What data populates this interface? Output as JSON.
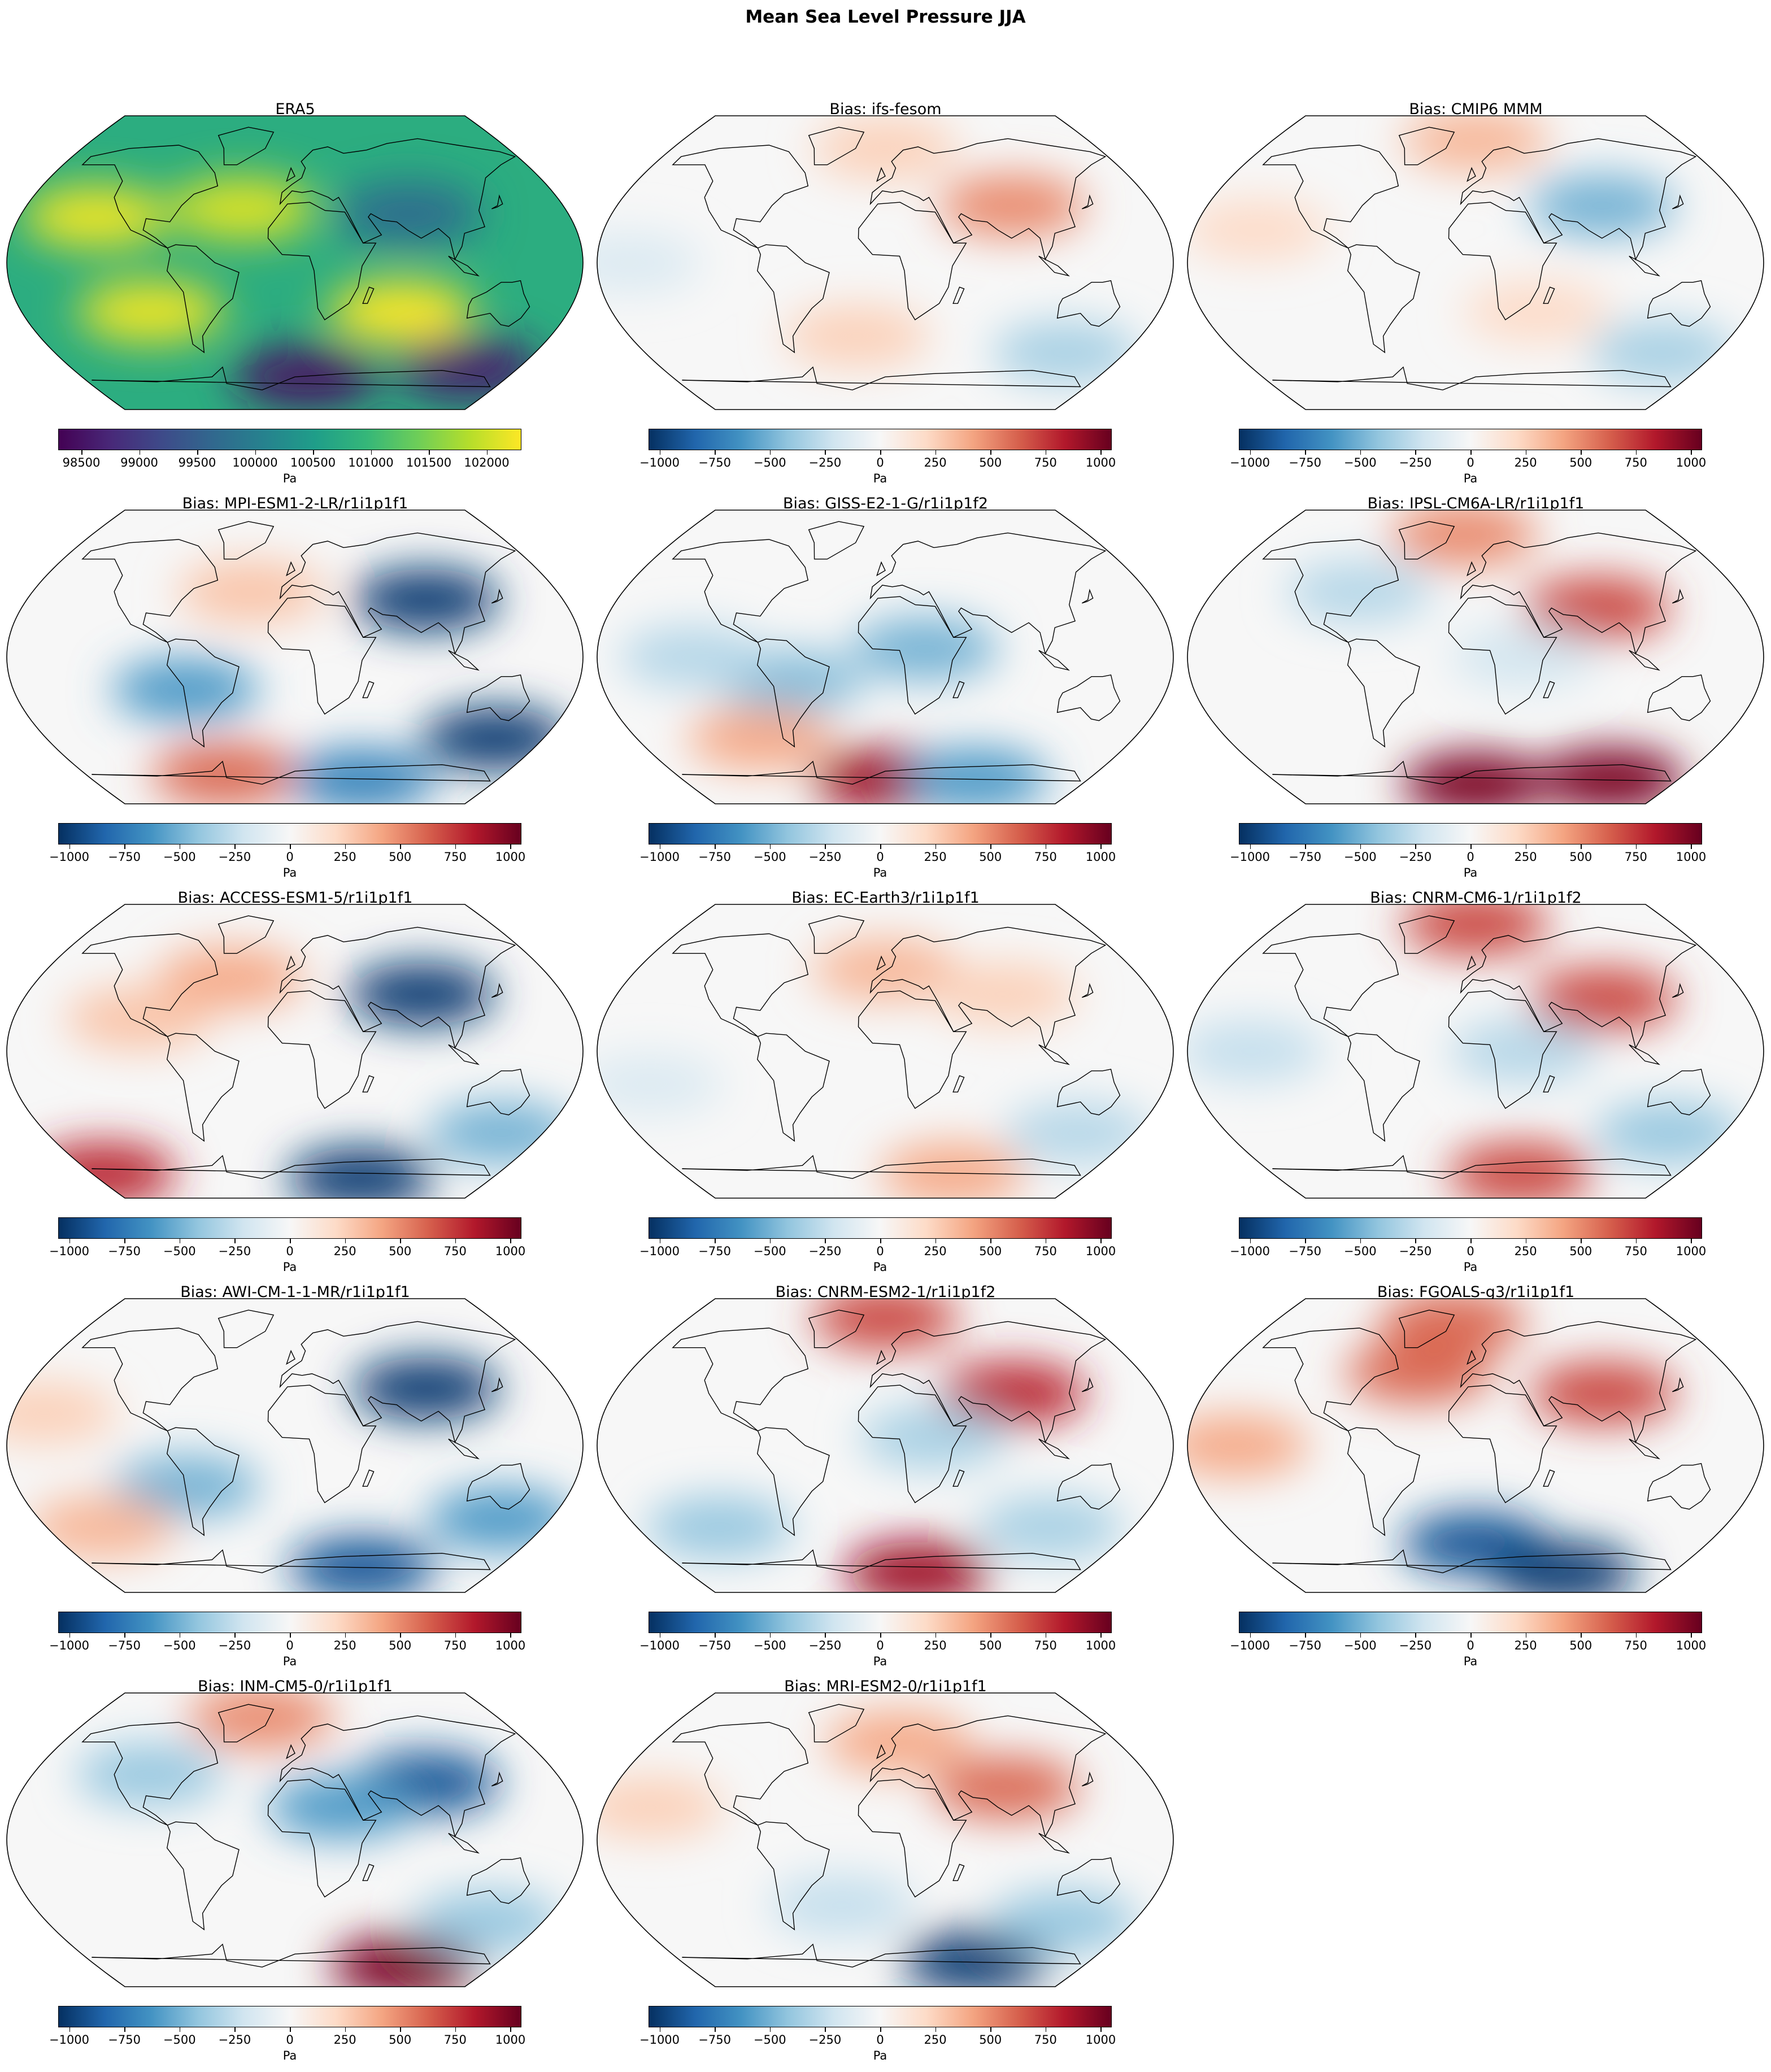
{
  "figure": {
    "title": "Mean Sea Level Pressure JJA"
  },
  "colors": {
    "viridis": [
      "#440154",
      "#482878",
      "#3e4a89",
      "#31688e",
      "#26828e",
      "#1f9e89",
      "#35b779",
      "#6ece58",
      "#b5de2b",
      "#fde725"
    ],
    "rdbu": [
      "#053061",
      "#2166ac",
      "#4393c3",
      "#92c5de",
      "#d1e5f0",
      "#f7f7f7",
      "#fddbc7",
      "#f4a582",
      "#d6604d",
      "#b2182b",
      "#67001f"
    ],
    "coastline": "#000000"
  },
  "colorbar_ticks": {
    "absolute": [
      "98500",
      "99000",
      "99500",
      "100000",
      "100500",
      "101000",
      "101500",
      "102000"
    ],
    "bias": [
      "−1000",
      "−750",
      "−500",
      "−250",
      "0",
      "250",
      "500",
      "750",
      "1000"
    ]
  },
  "colorbar_ranges": {
    "absolute": {
      "min": 98300,
      "max": 102300
    },
    "bias": {
      "min": -1050,
      "max": 1050
    }
  },
  "unit": "Pa",
  "panels": [
    {
      "title": "ERA5",
      "colormap": "viridis",
      "ticks": "absolute",
      "fields": [
        {
          "lon": -130,
          "lat": 28,
          "value": 102200
        },
        {
          "lon": -35,
          "lat": 33,
          "value": 102100
        },
        {
          "lon": -95,
          "lat": -30,
          "value": 102200
        },
        {
          "lon": 70,
          "lat": -30,
          "value": 102300
        },
        {
          "lon": 75,
          "lat": 30,
          "value": 99700
        },
        {
          "lon": 10,
          "lat": -70,
          "value": 98500
        },
        {
          "lon": 140,
          "lat": -65,
          "value": 98600
        }
      ]
    },
    {
      "title": "Bias: ifs-fesom",
      "colormap": "rdbu",
      "ticks": "bias",
      "fields": [
        {
          "lon": 85,
          "lat": 35,
          "value": 500
        },
        {
          "lon": 135,
          "lat": -55,
          "value": -350
        },
        {
          "lon": -20,
          "lat": -45,
          "value": 250
        },
        {
          "lon": 0,
          "lat": 70,
          "value": 250
        },
        {
          "lon": -160,
          "lat": 0,
          "value": -150
        }
      ]
    },
    {
      "title": "Bias: CMIP6 MMM",
      "colormap": "rdbu",
      "ticks": "bias",
      "fields": [
        {
          "lon": 85,
          "lat": 35,
          "value": -500
        },
        {
          "lon": 140,
          "lat": -55,
          "value": -350
        },
        {
          "lon": 0,
          "lat": 75,
          "value": 350
        },
        {
          "lon": -140,
          "lat": 20,
          "value": 200
        },
        {
          "lon": 40,
          "lat": -30,
          "value": 200
        }
      ]
    },
    {
      "title": "Bias: MPI-ESM1-2-LR/r1i1p1f1",
      "colormap": "rdbu",
      "ticks": "bias",
      "fields": [
        {
          "lon": 88,
          "lat": 35,
          "value": -1000
        },
        {
          "lon": 145,
          "lat": -50,
          "value": -1000
        },
        {
          "lon": -70,
          "lat": -20,
          "value": -600
        },
        {
          "lon": -60,
          "lat": -72,
          "value": 600
        },
        {
          "lon": 60,
          "lat": -75,
          "value": -700
        },
        {
          "lon": -30,
          "lat": 40,
          "value": 300
        }
      ]
    },
    {
      "title": "Bias: GISS-E2-1-G/r1i1p1f2",
      "colormap": "rdbu",
      "ticks": "bias",
      "fields": [
        {
          "lon": 25,
          "lat": 5,
          "value": -500
        },
        {
          "lon": -60,
          "lat": -15,
          "value": -450
        },
        {
          "lon": -120,
          "lat": 0,
          "value": -300
        },
        {
          "lon": 0,
          "lat": -75,
          "value": 900
        },
        {
          "lon": 80,
          "lat": -75,
          "value": -600
        },
        {
          "lon": -90,
          "lat": -50,
          "value": 400
        }
      ]
    },
    {
      "title": "Bias: IPSL-CM6A-LR/r1i1p1f1",
      "colormap": "rdbu",
      "ticks": "bias",
      "fields": [
        {
          "lon": 0,
          "lat": -78,
          "value": 1000
        },
        {
          "lon": 120,
          "lat": -75,
          "value": 1000
        },
        {
          "lon": 80,
          "lat": 30,
          "value": 700
        },
        {
          "lon": -10,
          "lat": 75,
          "value": 500
        },
        {
          "lon": -80,
          "lat": 40,
          "value": -300
        },
        {
          "lon": 30,
          "lat": 0,
          "value": -200
        }
      ]
    },
    {
      "title": "Bias: ACCESS-ESM1-5/r1i1p1f1",
      "colormap": "rdbu",
      "ticks": "bias",
      "fields": [
        {
          "lon": 85,
          "lat": 35,
          "value": -1000
        },
        {
          "lon": 60,
          "lat": -78,
          "value": -1000
        },
        {
          "lon": 150,
          "lat": -50,
          "value": -500
        },
        {
          "lon": -45,
          "lat": 45,
          "value": 400
        },
        {
          "lon": -170,
          "lat": -75,
          "value": 800
        },
        {
          "lon": -100,
          "lat": 20,
          "value": 300
        }
      ]
    },
    {
      "title": "Bias: EC-Earth3/r1i1p1f1",
      "colormap": "rdbu",
      "ticks": "bias",
      "fields": [
        {
          "lon": 0,
          "lat": 50,
          "value": 350
        },
        {
          "lon": 60,
          "lat": -75,
          "value": 400
        },
        {
          "lon": 140,
          "lat": -50,
          "value": -300
        },
        {
          "lon": -150,
          "lat": -20,
          "value": -150
        },
        {
          "lon": 80,
          "lat": 35,
          "value": 250
        }
      ]
    },
    {
      "title": "Bias: CNRM-CM6-1/r1i1p1f2",
      "colormap": "rdbu",
      "ticks": "bias",
      "fields": [
        {
          "lon": 0,
          "lat": 78,
          "value": 700
        },
        {
          "lon": 40,
          "lat": -75,
          "value": 700
        },
        {
          "lon": 85,
          "lat": 32,
          "value": 700
        },
        {
          "lon": -140,
          "lat": 0,
          "value": -250
        },
        {
          "lon": 140,
          "lat": -50,
          "value": -400
        },
        {
          "lon": 30,
          "lat": 0,
          "value": -300
        }
      ]
    },
    {
      "title": "Bias: AWI-CM-1-1-MR/r1i1p1f1",
      "colormap": "rdbu",
      "ticks": "bias",
      "fields": [
        {
          "lon": 88,
          "lat": 35,
          "value": -1000
        },
        {
          "lon": 60,
          "lat": -75,
          "value": -900
        },
        {
          "lon": 145,
          "lat": -45,
          "value": -600
        },
        {
          "lon": -70,
          "lat": -25,
          "value": -500
        },
        {
          "lon": -140,
          "lat": -50,
          "value": 350
        },
        {
          "lon": -160,
          "lat": 20,
          "value": 250
        }
      ]
    },
    {
      "title": "Bias: CNRM-ESM2-1/r1i1p1f2",
      "colormap": "rdbu",
      "ticks": "bias",
      "fields": [
        {
          "lon": 0,
          "lat": 78,
          "value": 700
        },
        {
          "lon": 30,
          "lat": -78,
          "value": 900
        },
        {
          "lon": 85,
          "lat": 32,
          "value": 800
        },
        {
          "lon": -120,
          "lat": -50,
          "value": -400
        },
        {
          "lon": 30,
          "lat": 5,
          "value": -350
        },
        {
          "lon": 120,
          "lat": -50,
          "value": -350
        }
      ]
    },
    {
      "title": "Bias: FGOALS-g3/r1i1p1f1",
      "colormap": "rdbu",
      "ticks": "bias",
      "fields": [
        {
          "lon": 0,
          "lat": -60,
          "value": -900
        },
        {
          "lon": 80,
          "lat": -78,
          "value": -1000
        },
        {
          "lon": -40,
          "lat": 45,
          "value": 600
        },
        {
          "lon": -20,
          "lat": 75,
          "value": 600
        },
        {
          "lon": 85,
          "lat": 32,
          "value": 700
        },
        {
          "lon": -150,
          "lat": 0,
          "value": 400
        }
      ]
    },
    {
      "title": "Bias: INM-CM5-0/r1i1p1f1",
      "colormap": "rdbu",
      "ticks": "bias",
      "fields": [
        {
          "lon": 88,
          "lat": 35,
          "value": -900
        },
        {
          "lon": 30,
          "lat": 20,
          "value": -600
        },
        {
          "lon": 100,
          "lat": -78,
          "value": 1000
        },
        {
          "lon": -30,
          "lat": 75,
          "value": 500
        },
        {
          "lon": -100,
          "lat": 40,
          "value": -400
        },
        {
          "lon": 140,
          "lat": -50,
          "value": -400
        }
      ]
    },
    {
      "title": "Bias: MRI-ESM2-0/r1i1p1f1",
      "colormap": "rdbu",
      "ticks": "bias",
      "fields": [
        {
          "lon": 80,
          "lat": -75,
          "value": -1000
        },
        {
          "lon": 80,
          "lat": 32,
          "value": 600
        },
        {
          "lon": 10,
          "lat": 60,
          "value": 400
        },
        {
          "lon": 130,
          "lat": -50,
          "value": -400
        },
        {
          "lon": -30,
          "lat": -40,
          "value": -250
        },
        {
          "lon": -150,
          "lat": 20,
          "value": 250
        }
      ]
    }
  ]
}
